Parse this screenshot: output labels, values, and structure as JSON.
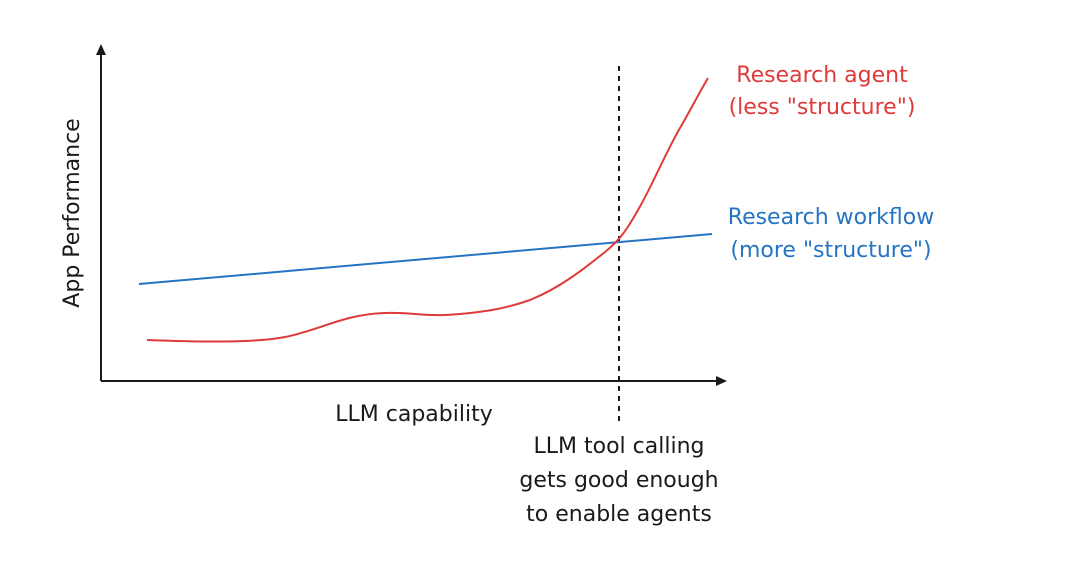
{
  "colors": {
    "axis": "#1a1a1a",
    "agent": "#e03a3a",
    "workflow": "#2574c4",
    "text": "#1a1a1a",
    "background": "#ffffff"
  },
  "axes": {
    "xlabel": "LLM capability",
    "ylabel": "App Performance"
  },
  "series": {
    "agent": {
      "label_line1": "Research agent",
      "label_line2": "(less \"structure\")"
    },
    "workflow": {
      "label_line1": "Research workflow",
      "label_line2": "(more \"structure\")"
    }
  },
  "annotation": {
    "line1": "LLM tool calling",
    "line2": "gets good enough",
    "line3": "to enable agents"
  }
}
